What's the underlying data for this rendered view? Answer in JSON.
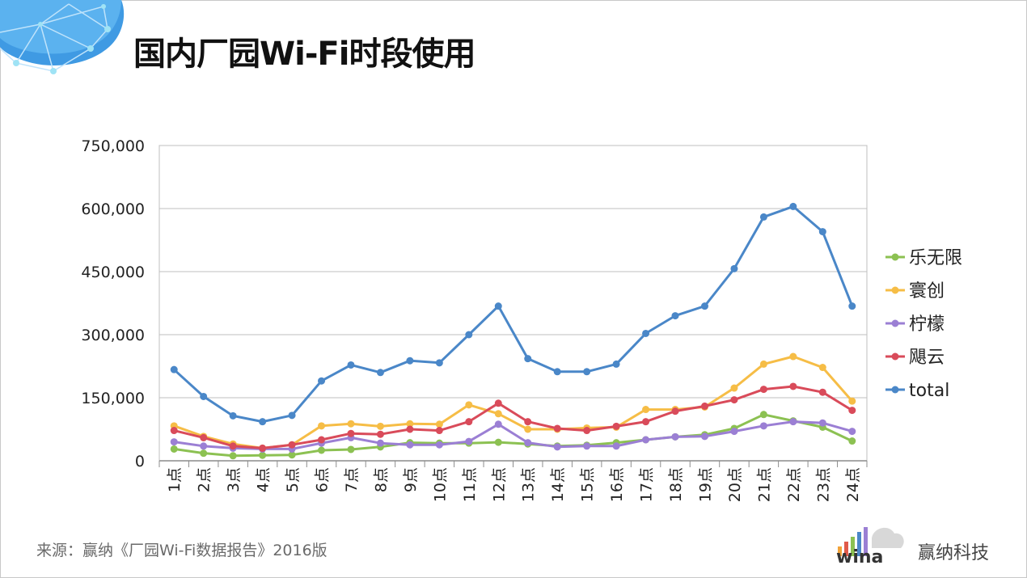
{
  "page": {
    "title": "国内厂园Wi-Fi时段使用",
    "source": "来源：赢纳《厂园Wi-Fi数据报告》2016版",
    "brand": "赢纳科技",
    "logo_text": "wina"
  },
  "chart_data": {
    "type": "line",
    "title": "国内厂园Wi-Fi时段使用",
    "xlabel": "",
    "ylabel": "",
    "ylim": [
      0,
      750000
    ],
    "yticks": [
      0,
      150000,
      300000,
      450000,
      600000,
      750000
    ],
    "ytick_labels": [
      "0",
      "150,000",
      "300,000",
      "450,000",
      "600,000",
      "750,000"
    ],
    "grid": true,
    "legend_position": "right",
    "categories": [
      "1点",
      "2点",
      "3点",
      "4点",
      "5点",
      "6点",
      "7点",
      "8点",
      "9点",
      "10点",
      "11点",
      "12点",
      "13点",
      "14点",
      "15点",
      "16点",
      "17点",
      "18点",
      "19点",
      "20点",
      "21点",
      "22点",
      "23点",
      "24点"
    ],
    "series": [
      {
        "name": "乐无限",
        "color": "#8cc152",
        "values": [
          28000,
          18000,
          12000,
          13000,
          14000,
          25000,
          27000,
          33000,
          43000,
          42000,
          42000,
          44000,
          40000,
          35000,
          37000,
          43000,
          50000,
          57000,
          62000,
          77000,
          110000,
          95000,
          80000,
          47000
        ]
      },
      {
        "name": "寰创",
        "color": "#f6bd46",
        "values": [
          83000,
          58000,
          40000,
          30000,
          38000,
          83000,
          88000,
          82000,
          88000,
          87000,
          133000,
          112000,
          75000,
          75000,
          78000,
          80000,
          122000,
          122000,
          128000,
          173000,
          230000,
          248000,
          222000,
          142000
        ]
      },
      {
        "name": "柠檬",
        "color": "#9b7fd4",
        "values": [
          45000,
          35000,
          30000,
          28000,
          28000,
          42000,
          55000,
          42000,
          38000,
          38000,
          46000,
          87000,
          43000,
          33000,
          35000,
          35000,
          50000,
          57000,
          58000,
          70000,
          83000,
          93000,
          90000,
          70000
        ]
      },
      {
        "name": "飓云",
        "color": "#d94b5a",
        "values": [
          72000,
          55000,
          35000,
          30000,
          38000,
          50000,
          65000,
          63000,
          75000,
          72000,
          93000,
          137000,
          93000,
          77000,
          72000,
          82000,
          93000,
          118000,
          130000,
          145000,
          170000,
          177000,
          163000,
          120000
        ]
      },
      {
        "name": "total",
        "color": "#4a87c8",
        "values": [
          217000,
          153000,
          107000,
          93000,
          108000,
          190000,
          228000,
          210000,
          238000,
          233000,
          300000,
          368000,
          243000,
          212000,
          212000,
          230000,
          303000,
          345000,
          368000,
          457000,
          580000,
          605000,
          545000,
          368000
        ]
      }
    ]
  }
}
